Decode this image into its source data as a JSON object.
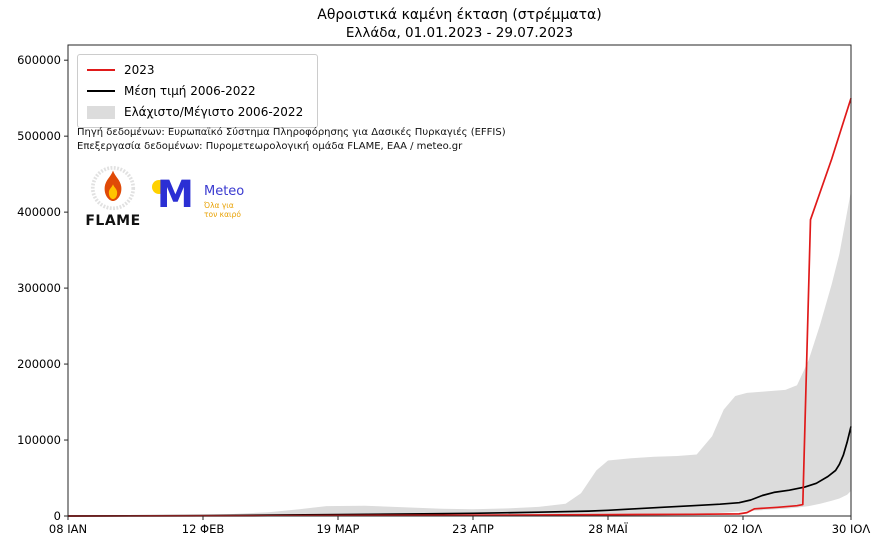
{
  "title": {
    "line1": "Αθροιστικά καμένη έκταση (στρέμματα)",
    "line2": "Ελλάδα, 01.01.2023 - 29.07.2023"
  },
  "legend": {
    "items": [
      {
        "label": "2023",
        "type": "line",
        "color": "#e01a1a"
      },
      {
        "label": "Μέση τιμή 2006-2022",
        "type": "line",
        "color": "#000000"
      },
      {
        "label": "Ελάχιστο/Μέγιστο 2006-2022",
        "type": "patch",
        "color": "#dcdcdc"
      }
    ]
  },
  "annotations": {
    "source": "Πηγή δεδομένων: Ευρωπαϊκό Σύστημα Πληροφόρησης για Δασικές Πυρκαγιές (EFFIS)",
    "processing": "Επεξεργασία δεδομένων: Πυρομετεωρολογική ομάδα FLAME, ΕΑΑ / meteo.gr"
  },
  "logos": {
    "flame": {
      "label": "FLAME"
    },
    "meteo": {
      "monogram": "M",
      "label": "Meteo",
      "tagline": "Όλα για τον καιρό"
    }
  },
  "chart_data": {
    "type": "line",
    "title": "Αθροιστικά καμένη έκταση (στρέμματα)",
    "subtitle": "Ελλάδα, 01.01.2023 - 29.07.2023",
    "x_unit": "day_of_year_2023",
    "xlim": [
      8,
      211
    ],
    "ylim": [
      0,
      620000
    ],
    "grid": false,
    "legend_position": "upper left",
    "yticks": [
      0,
      100000,
      200000,
      300000,
      400000,
      500000,
      600000
    ],
    "xticks": [
      {
        "day": 8,
        "label": "08 ΙΑΝ"
      },
      {
        "day": 43,
        "label": "12 ΦΕΒ"
      },
      {
        "day": 78,
        "label": "19 ΜΑΡ"
      },
      {
        "day": 113,
        "label": "23 ΑΠΡ"
      },
      {
        "day": 148,
        "label": "28 ΜΑΪ"
      },
      {
        "day": 183,
        "label": "02 ΙΟΛ"
      },
      {
        "day": 211,
        "label": "30 ΙΟΛ"
      }
    ],
    "series": [
      {
        "name": "2023",
        "color": "#e01a1a",
        "points": [
          [
            8,
            0
          ],
          [
            30,
            100
          ],
          [
            60,
            400
          ],
          [
            90,
            800
          ],
          [
            120,
            1200
          ],
          [
            150,
            1800
          ],
          [
            170,
            2300
          ],
          [
            182,
            2800
          ],
          [
            184,
            4500
          ],
          [
            186,
            9500
          ],
          [
            192,
            11500
          ],
          [
            197,
            13500
          ],
          [
            198.5,
            15000
          ],
          [
            200.5,
            390000
          ],
          [
            206,
            470000
          ],
          [
            211,
            550000
          ]
        ]
      },
      {
        "name": "Μέση τιμή 2006-2022",
        "color": "#000000",
        "points": [
          [
            8,
            0
          ],
          [
            43,
            500
          ],
          [
            78,
            1800
          ],
          [
            100,
            2800
          ],
          [
            113,
            3500
          ],
          [
            130,
            5000
          ],
          [
            143,
            6500
          ],
          [
            148,
            7500
          ],
          [
            155,
            9500
          ],
          [
            162,
            11500
          ],
          [
            170,
            13500
          ],
          [
            177,
            15500
          ],
          [
            182,
            17500
          ],
          [
            185,
            21000
          ],
          [
            188,
            27000
          ],
          [
            191,
            31000
          ],
          [
            195,
            34000
          ],
          [
            199,
            38000
          ],
          [
            202,
            43000
          ],
          [
            205,
            52000
          ],
          [
            207,
            60000
          ],
          [
            208,
            68000
          ],
          [
            209,
            80000
          ],
          [
            210,
            97000
          ],
          [
            211,
            118000
          ]
        ]
      }
    ],
    "band": {
      "name": "Ελάχιστο/Μέγιστο 2006-2022",
      "color": "#dcdcdc",
      "points": [
        [
          8,
          0,
          0
        ],
        [
          30,
          0,
          500
        ],
        [
          50,
          0,
          2500
        ],
        [
          60,
          0,
          5000
        ],
        [
          68,
          0,
          9000
        ],
        [
          75,
          0,
          13000
        ],
        [
          85,
          0,
          13500
        ],
        [
          95,
          0,
          11500
        ],
        [
          105,
          0,
          9500
        ],
        [
          113,
          0,
          9000
        ],
        [
          122,
          0,
          10000
        ],
        [
          130,
          0,
          12000
        ],
        [
          137,
          0,
          16000
        ],
        [
          141,
          0,
          30000
        ],
        [
          145,
          0,
          60000
        ],
        [
          148,
          0,
          73000
        ],
        [
          154,
          0,
          76000
        ],
        [
          160,
          500,
          78000
        ],
        [
          166,
          1500,
          79000
        ],
        [
          171,
          2500,
          81000
        ],
        [
          175,
          3500,
          105000
        ],
        [
          178,
          4500,
          140000
        ],
        [
          181,
          5500,
          158000
        ],
        [
          184,
          6500,
          162000
        ],
        [
          189,
          8000,
          164000
        ],
        [
          194,
          9500,
          166000
        ],
        [
          197,
          11000,
          172000
        ],
        [
          200,
          13000,
          205000
        ],
        [
          203,
          16000,
          252000
        ],
        [
          206,
          20000,
          305000
        ],
        [
          208,
          23000,
          345000
        ],
        [
          210,
          28000,
          400000
        ],
        [
          211,
          33000,
          428000
        ]
      ]
    }
  }
}
